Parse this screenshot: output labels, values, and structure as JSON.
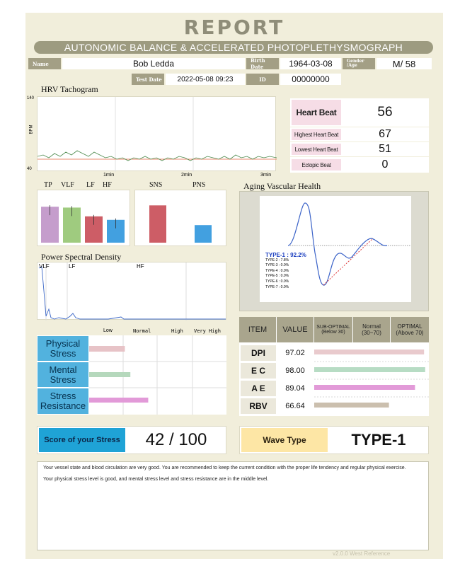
{
  "header": {
    "title": "REPORT",
    "subtitle": "AUTONOMIC BALANCE & ACCELERATED PHOTOPLETHYSMOGRAPH"
  },
  "patient": {
    "name_label": "Name",
    "name": "Bob Ledda",
    "birth_label": "Birth Date",
    "birth_date": "1964-03-08",
    "gender_label": "Gender /Age",
    "gender_age": "M/  58",
    "test_label": "Test Date",
    "test_date": "2022-05-08 09:23",
    "id_label": "ID",
    "id": "00000000"
  },
  "hrv": {
    "title": "HRV Tachogram",
    "y_max": "140",
    "y_min": "40",
    "y_label": "BPM",
    "ticks": [
      "1min",
      "2min",
      "3min"
    ]
  },
  "heart": {
    "title": "Heart Beat",
    "value": "56",
    "rows": [
      {
        "label": "Highest Heart Beat",
        "value": "67"
      },
      {
        "label": "Lowest Heart Beat",
        "value": "51"
      },
      {
        "label": "Ectopic Beat",
        "value": "0"
      }
    ]
  },
  "autonomic": {
    "labels1": [
      "TP",
      "VLF",
      "LF",
      "HF"
    ],
    "labels2": [
      "SNS",
      "PNS"
    ],
    "colors1": [
      "#c59dcc",
      "#9fcb7f",
      "#cd5d66",
      "#42a0e0"
    ],
    "colors2": [
      "#cd5d66",
      "#42a0e0"
    ],
    "values1": [
      0.82,
      0.8,
      0.6,
      0.52
    ],
    "values2": [
      0.85,
      0.4
    ]
  },
  "psd": {
    "title": "Power Spectral Density",
    "bands": [
      "VLF",
      "LF",
      "HF"
    ]
  },
  "aging": {
    "title": "Aging Vascular Health",
    "types": [
      {
        "label": "TYPE-1 : 92.2%",
        "highlight": true
      },
      {
        "label": "TYPE-2 : 7.8%"
      },
      {
        "label": "TYPE-3 : 0.0%"
      },
      {
        "label": "TYPE-4 : 0.0%"
      },
      {
        "label": "TYPE-5 : 0.0%"
      },
      {
        "label": "TYPE-6 : 0.0%"
      },
      {
        "label": "TYPE-7 : 0.0%"
      }
    ]
  },
  "stress": {
    "scale": [
      "Low",
      "Normal",
      "High",
      "Very High"
    ],
    "rows": [
      {
        "label1": "Physical",
        "label2": "Stress",
        "level": 0.26,
        "color": "#e7c3c7"
      },
      {
        "label1": "Mental",
        "label2": "Stress",
        "level": 0.3,
        "color": "#b5d8bc"
      },
      {
        "label1": "Stress",
        "label2": "Resistance",
        "level": 0.43,
        "color": "#e29ad8"
      }
    ]
  },
  "vascular_table": {
    "headers": [
      "ITEM",
      "VALUE",
      "SUB-OPTIMAL",
      "(Below 30)",
      "Normal",
      "(30~70)",
      "OPTIMAL",
      "(Above 70)"
    ],
    "rows": [
      {
        "item": "DPI",
        "value": "97.02",
        "level": 0.97,
        "color": "#e9cacd"
      },
      {
        "item": "E C",
        "value": "98.00",
        "level": 0.98,
        "color": "#b7dcc4"
      },
      {
        "item": "A E",
        "value": "89.04",
        "level": 0.89,
        "color": "#e29ad8"
      },
      {
        "item": "RBV",
        "value": "66.64",
        "level": 0.66,
        "color": "#cbbfae"
      }
    ]
  },
  "score": {
    "label": "Score of your Stress",
    "value": "42 / 100",
    "wave_label": "Wave Type",
    "wave_value": "TYPE-1"
  },
  "message": {
    "line1": "Your vessel state and blood circulation are very good. You are recommended to keep the current condition with the proper life tendency and regular physical exercise.",
    "line2": "Your physical stress level is good, and mental stress level and stress resistance are in the middle level."
  },
  "footer": "v2.0.0 West Reference"
}
